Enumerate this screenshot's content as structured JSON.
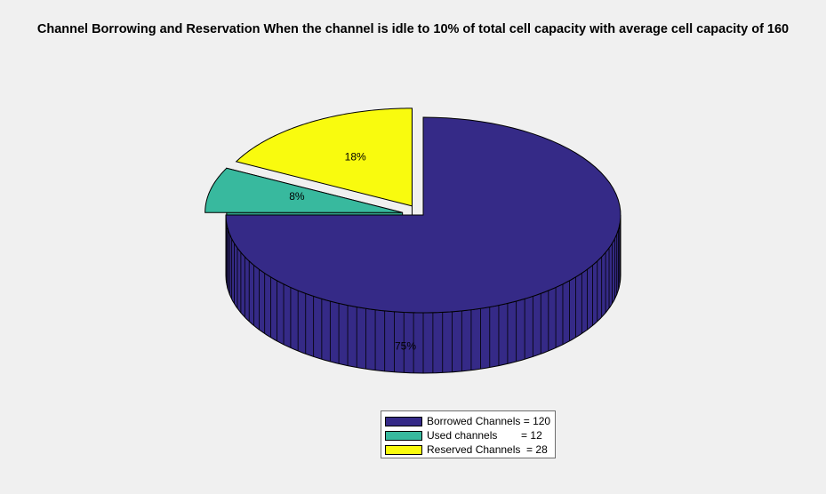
{
  "chart_data": {
    "type": "pie",
    "title": "Channel Borrowing and Reservation When the channel is idle to 10% of total cell capacity with average cell capacity of 160",
    "slices": [
      {
        "label": "Borrowed Channels = 120",
        "value": 120,
        "percent_label": "75%",
        "color": "#352a87",
        "exploded": false
      },
      {
        "label": "Used channels        = 12",
        "value": 12,
        "percent_label": "8%",
        "color": "#38b99e",
        "exploded": true
      },
      {
        "label": "Reserved Channels  = 28",
        "value": 28,
        "percent_label": "18%",
        "color": "#f9fb0e",
        "exploded": true
      }
    ],
    "three_d": true,
    "legend_position": "bottom"
  }
}
